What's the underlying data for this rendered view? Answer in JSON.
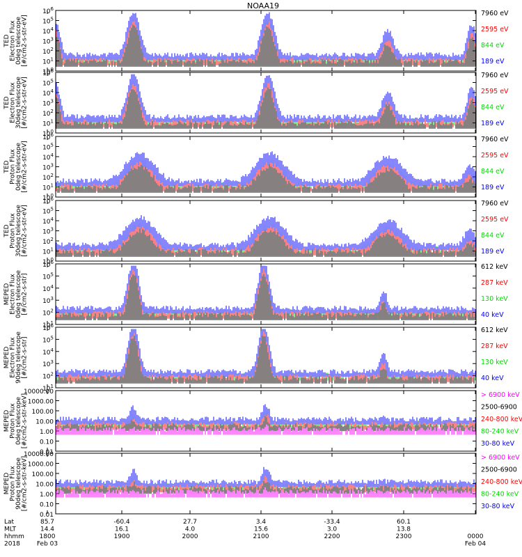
{
  "chart_data": {
    "type": "line",
    "title": "NOAA19",
    "colors": {
      "black": "#000000",
      "red": "#ff0000",
      "green": "#00dd00",
      "blue": "#0000ff",
      "magenta": "#ff00ff"
    },
    "x_axis": {
      "rows": [
        {
          "label": "Lat",
          "ticks": [
            "85.7",
            "-60.4",
            "27.7",
            "3.4",
            "-33.4",
            "60.1",
            ""
          ]
        },
        {
          "label": "MLT",
          "ticks": [
            "14.4",
            "16.1",
            "4.0",
            "15.6",
            "3.0",
            "13.8",
            ""
          ]
        },
        {
          "label": "hhmm",
          "ticks": [
            "1800",
            "1900",
            "2000",
            "2100",
            "2200",
            "2300",
            "0000"
          ]
        },
        {
          "label": "2018",
          "ticks": [
            "Feb 03",
            "",
            "",
            "",
            "",
            "",
            "Feb 04"
          ]
        }
      ]
    },
    "panels": [
      {
        "ylabel": [
          "TED",
          "Electron Flux",
          "0deg telescope",
          "[#/cm2-s-str-eV]"
        ],
        "log": true,
        "ticks": [
          "10^0",
          "10^1",
          "10^2",
          "10^3",
          "10^4",
          "10^5",
          "10^6"
        ],
        "legend": [
          {
            "text": "7960 eV",
            "color": "black"
          },
          {
            "text": "2595 eV",
            "color": "red"
          },
          {
            "text": "844 eV",
            "color": "green"
          },
          {
            "text": "189 eV",
            "color": "blue"
          }
        ]
      },
      {
        "ylabel": [
          "TED",
          "Electron Flux",
          "30deg telescope",
          "[#/cm2-s-str-eV]"
        ],
        "log": true,
        "ticks": [
          "10^0",
          "10^1",
          "10^2",
          "10^3",
          "10^4",
          "10^5",
          "10^6"
        ],
        "legend": [
          {
            "text": "7960 eV",
            "color": "black"
          },
          {
            "text": "2595 eV",
            "color": "red"
          },
          {
            "text": "844 eV",
            "color": "green"
          },
          {
            "text": "189 eV",
            "color": "blue"
          }
        ]
      },
      {
        "ylabel": [
          "TED",
          "Proton Flux",
          "0deg telescope",
          "[#/cm2-s-str-eV]"
        ],
        "log": true,
        "ticks": [
          "10^0",
          "10^1",
          "10^2",
          "10^3",
          "10^4",
          "10^5",
          "10^6"
        ],
        "legend": [
          {
            "text": "7960 eV",
            "color": "black"
          },
          {
            "text": "2595 eV",
            "color": "red"
          },
          {
            "text": "844 eV",
            "color": "green"
          },
          {
            "text": "189 eV",
            "color": "blue"
          }
        ]
      },
      {
        "ylabel": [
          "TED",
          "Proton Flux",
          "30deg telescope",
          "[#/cm2-s-str-eV]"
        ],
        "log": true,
        "ticks": [
          "10^0",
          "10^1",
          "10^2",
          "10^3",
          "10^4",
          "10^5",
          "10^6"
        ],
        "legend": [
          {
            "text": "7960 eV",
            "color": "black"
          },
          {
            "text": "2595 eV",
            "color": "red"
          },
          {
            "text": "844 eV",
            "color": "green"
          },
          {
            "text": "189 eV",
            "color": "blue"
          }
        ]
      },
      {
        "ylabel": [
          "MEPED",
          "Electron Flux",
          "0deg telescope",
          "[#/cm2-s-str]"
        ],
        "log": true,
        "ticks": [
          "10^1",
          "10^2",
          "10^3",
          "10^4",
          "10^5",
          "10^6"
        ],
        "legend": [
          {
            "text": "612 keV",
            "color": "black"
          },
          {
            "text": "287 keV",
            "color": "red"
          },
          {
            "text": "130 keV",
            "color": "green"
          },
          {
            "text": "40 keV",
            "color": "blue"
          }
        ]
      },
      {
        "ylabel": [
          "MEPED",
          "Electron Flux",
          "90deg telescope",
          "[#/cm2-s-str]"
        ],
        "log": true,
        "ticks": [
          "10^1",
          "10^2",
          "10^3",
          "10^4",
          "10^5",
          "10^6"
        ],
        "legend": [
          {
            "text": "612 keV",
            "color": "black"
          },
          {
            "text": "287 keV",
            "color": "red"
          },
          {
            "text": "130 keV",
            "color": "green"
          },
          {
            "text": "40 keV",
            "color": "blue"
          }
        ]
      },
      {
        "ylabel": [
          "MEPED",
          "Proton Flux",
          "0deg telescope",
          "[#/cm2-s-str-keV]"
        ],
        "log": true,
        "ticks": [
          "0.01",
          "0.10",
          "1.00",
          "10.00",
          "100.00",
          "1000.00",
          "10000.00"
        ],
        "legend": [
          {
            "text": "> 6900 keV",
            "color": "magenta"
          },
          {
            "text": "2500-6900",
            "color": "black"
          },
          {
            "text": "240-800 keV",
            "color": "red"
          },
          {
            "text": "80-240 keV",
            "color": "green"
          },
          {
            "text": "30-80 keV",
            "color": "blue"
          }
        ]
      },
      {
        "ylabel": [
          "MEPED",
          "Proton Flux",
          "90deg telescope",
          "[#/cm2-s-str-keV]"
        ],
        "log": true,
        "ticks": [
          "0.01",
          "0.10",
          "1.00",
          "10.00",
          "100.00",
          "1000.00",
          "10000.00"
        ],
        "legend": [
          {
            "text": "> 6900 keV",
            "color": "magenta"
          },
          {
            "text": "2500-6900",
            "color": "black"
          },
          {
            "text": "240-800 keV",
            "color": "red"
          },
          {
            "text": "80-240 keV",
            "color": "green"
          },
          {
            "text": "30-80 keV",
            "color": "blue"
          }
        ]
      }
    ]
  }
}
